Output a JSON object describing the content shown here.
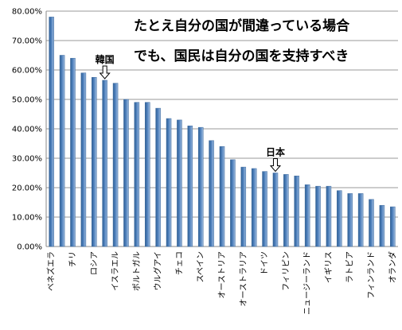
{
  "chart_data": {
    "type": "bar",
    "title_lines": [
      "たとえ自分の国が間違っている場合",
      "でも、国民は自分の国を支持すべき"
    ],
    "ylim": [
      0,
      80
    ],
    "yticks": [
      0,
      10,
      20,
      30,
      40,
      50,
      60,
      70,
      80
    ],
    "ytick_labels": [
      "0.00%",
      "10.00%",
      "20.00%",
      "30.00%",
      "40.00%",
      "50.00%",
      "60.00%",
      "70.00%",
      "80.00%"
    ],
    "grid": true,
    "bar_color": "#4f81bd",
    "categories": [
      "ベネズエラ",
      "",
      "チリ",
      "",
      "ロシア",
      "",
      "イスラエル",
      "",
      "ポルトガル",
      "",
      "ウルグアイ",
      "",
      "チェコ",
      "",
      "スペイン",
      "",
      "オーストリア",
      "",
      "オーストラリア",
      "",
      "ドイツ",
      "",
      "フィリピン",
      "",
      "ニュージーランド",
      "",
      "イギリス",
      "",
      "ラトビア",
      "",
      "フィンランド",
      "",
      "オランダ"
    ],
    "values": [
      78,
      65,
      64,
      59,
      57.5,
      56.5,
      55.5,
      50,
      49,
      49,
      47,
      43.5,
      43,
      41,
      40.5,
      36,
      34,
      29.5,
      27,
      26.5,
      25.5,
      25,
      24.5,
      24,
      21,
      20.5,
      20.5,
      19,
      18,
      18,
      16,
      14,
      13.5
    ],
    "annotations": [
      {
        "label": "韓国",
        "index": 5
      },
      {
        "label": "日本",
        "index": 21
      }
    ]
  }
}
